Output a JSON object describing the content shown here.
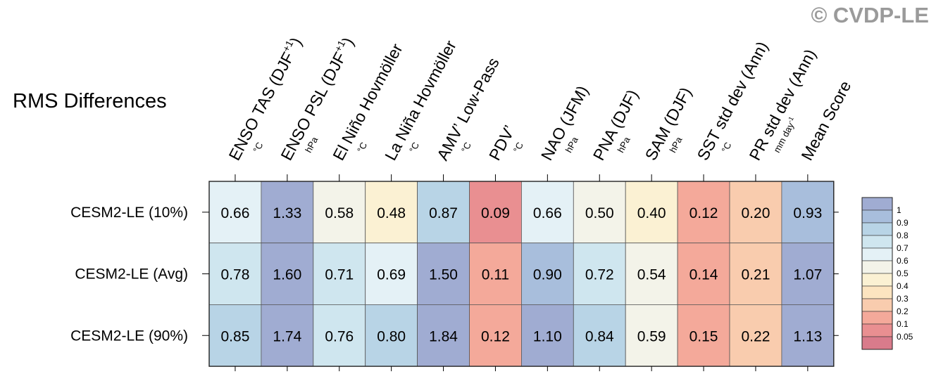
{
  "title": "RMS Differences",
  "watermark": "© CVDP-LE",
  "chart_data": {
    "type": "heatmap",
    "title": "RMS Differences",
    "columns": [
      {
        "name": "ENSO TAS (DJF",
        "sup": "+1",
        "close": ")",
        "unit": "°C"
      },
      {
        "name": "ENSO PSL (DJF",
        "sup": "+1",
        "close": ")",
        "unit": "hPa"
      },
      {
        "name": "El Niño Hovmöller",
        "unit": "°C"
      },
      {
        "name": "La Niña Hovmöller",
        "unit": "°C"
      },
      {
        "name": "AMV’ Low-Pass",
        "unit": "°C"
      },
      {
        "name": "PDV’",
        "unit": "°C"
      },
      {
        "name": "NAO (JFM)",
        "unit": "hPa"
      },
      {
        "name": "PNA (DJF)",
        "unit": "hPa"
      },
      {
        "name": "SAM (DJF)",
        "unit": "hPa"
      },
      {
        "name": "SST std dev (Ann)",
        "unit": "°C"
      },
      {
        "name": "PR std dev (Ann)",
        "unit": "mm day",
        "unit_sup": "-1"
      },
      {
        "name": "Mean Score",
        "unit": ""
      }
    ],
    "rows": [
      "CESM2-LE (10%)",
      "CESM2-LE (Avg)",
      "CESM2-LE (90%)"
    ],
    "values": [
      [
        "0.66",
        "1.33",
        "0.58",
        "0.48",
        "0.87",
        "0.09",
        "0.66",
        "0.50",
        "0.40",
        "0.12",
        "0.20",
        "0.93"
      ],
      [
        "0.78",
        "1.60",
        "0.71",
        "0.69",
        "1.50",
        "0.11",
        "0.90",
        "0.72",
        "0.54",
        "0.14",
        "0.21",
        "1.07"
      ],
      [
        "0.85",
        "1.74",
        "0.76",
        "0.80",
        "1.84",
        "0.12",
        "1.10",
        "0.84",
        "0.59",
        "0.15",
        "0.22",
        "1.13"
      ]
    ],
    "colorbar": {
      "ticks": [
        "1",
        "0.9",
        "0.8",
        "0.7",
        "0.6",
        "0.5",
        "0.4",
        "0.3",
        "0.2",
        "0.1",
        "0.05"
      ],
      "colors": [
        "#a0acd2",
        "#a8bedc",
        "#b8d4e6",
        "#cfe6ef",
        "#e4f1f6",
        "#f3f3e9",
        "#fbf1d3",
        "#fce4c0",
        "#f9ccae",
        "#f4a99a",
        "#e98f91",
        "#d97b8b"
      ]
    },
    "legend": "right"
  }
}
